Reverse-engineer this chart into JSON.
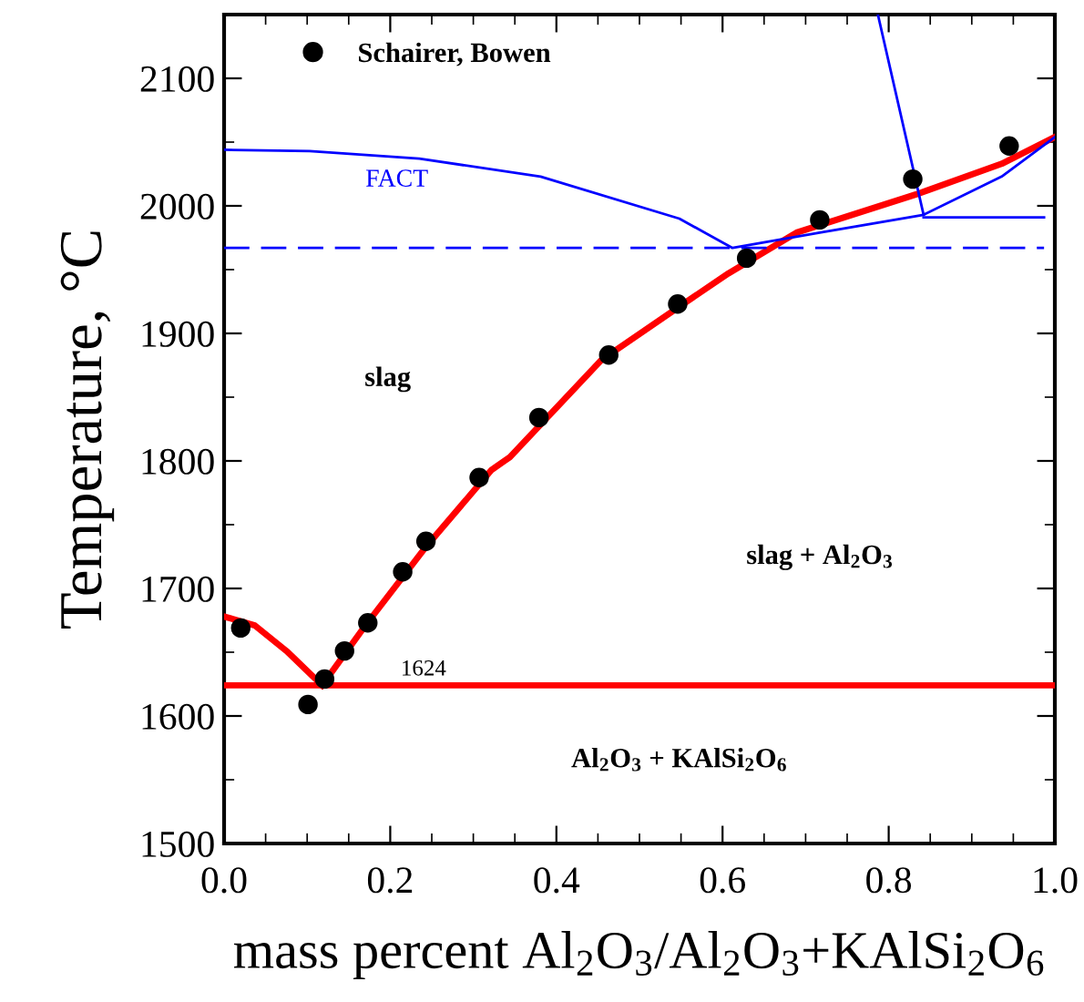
{
  "chart_data": {
    "type": "line",
    "xlabel": "mass percent Al$_{2}$O$_{3}$/Al$_{2}$O$_{3}$+KAlSi$_{2}$O$_{6}$",
    "ylabel": "Temperature, °C",
    "xlim": [
      0,
      1
    ],
    "ylim": [
      1500,
      2150
    ],
    "xticks": [
      {
        "value": 0,
        "label": "0.0"
      },
      {
        "value": 0.2,
        "label": "0.2"
      },
      {
        "value": 0.4,
        "label": "0.4"
      },
      {
        "value": 0.6,
        "label": "0.6"
      },
      {
        "value": 0.8,
        "label": "0.8"
      },
      {
        "value": 1,
        "label": "1.0"
      }
    ],
    "yticks": [
      1500,
      1600,
      1700,
      1800,
      1900,
      2000,
      2100
    ],
    "grid": false,
    "legend": "top left",
    "series": [
      {
        "name": "Schairer, Bowen",
        "type": "scatter",
        "marker": "circle",
        "color": "#000000",
        "x": [
          0.02,
          0.101,
          0.121,
          0.145,
          0.173,
          0.215,
          0.243,
          0.307,
          0.379,
          0.463,
          0.546,
          0.629,
          0.717,
          0.829,
          0.945
        ],
        "values": [
          1669,
          1609,
          1629,
          1651,
          1673,
          1713,
          1737,
          1787,
          1834,
          1883,
          1923,
          1959,
          1989,
          2021,
          2047
        ]
      },
      {
        "color": "#ff0000",
        "x": [
          0,
          0.037,
          0.075,
          0.118
        ],
        "values": [
          1678,
          1671,
          1651,
          1624
        ]
      },
      {
        "color": "#ff0000",
        "x": [
          0.118,
          0.169,
          0.241,
          0.322,
          0.344,
          0.454,
          0.548,
          0.607,
          0.689,
          0.833,
          0.936,
          1.0
        ],
        "values": [
          1624,
          1670,
          1731,
          1793,
          1803,
          1879,
          1921,
          1947,
          1979,
          2009,
          2033,
          2054
        ]
      },
      {
        "color": "#0000ff",
        "x": [
          0,
          0.103,
          0.235,
          0.381,
          0.548,
          0.612,
          0.717,
          0.842,
          0.936,
          1.0
        ],
        "values": [
          2044,
          2043,
          2037,
          2023,
          1990,
          1967,
          1979,
          1993,
          2023,
          2054
        ]
      },
      {
        "color": "#0000ff",
        "x": [
          0.787,
          0.842
        ],
        "values": [
          2150,
          1993
        ]
      },
      {
        "color": "#0000ff",
        "x": [
          0.842,
          0.987
        ],
        "values": [
          1991,
          1991
        ]
      },
      {
        "color": "#0000ff",
        "line_style": "dashed",
        "x": [
          0,
          0.987
        ],
        "values": [
          1967,
          1967
        ]
      }
    ],
    "ref_lines": [
      {
        "axis": "y",
        "value": 1624,
        "label": "1624",
        "color": "#ff0000"
      }
    ],
    "annotations": [
      "FACT",
      "slag",
      "slag + Al$_{2}$O$_{3}$",
      "Al$_{2}$O$_{3}$ + KAlSi$_{2}$O$_{6}$"
    ]
  }
}
